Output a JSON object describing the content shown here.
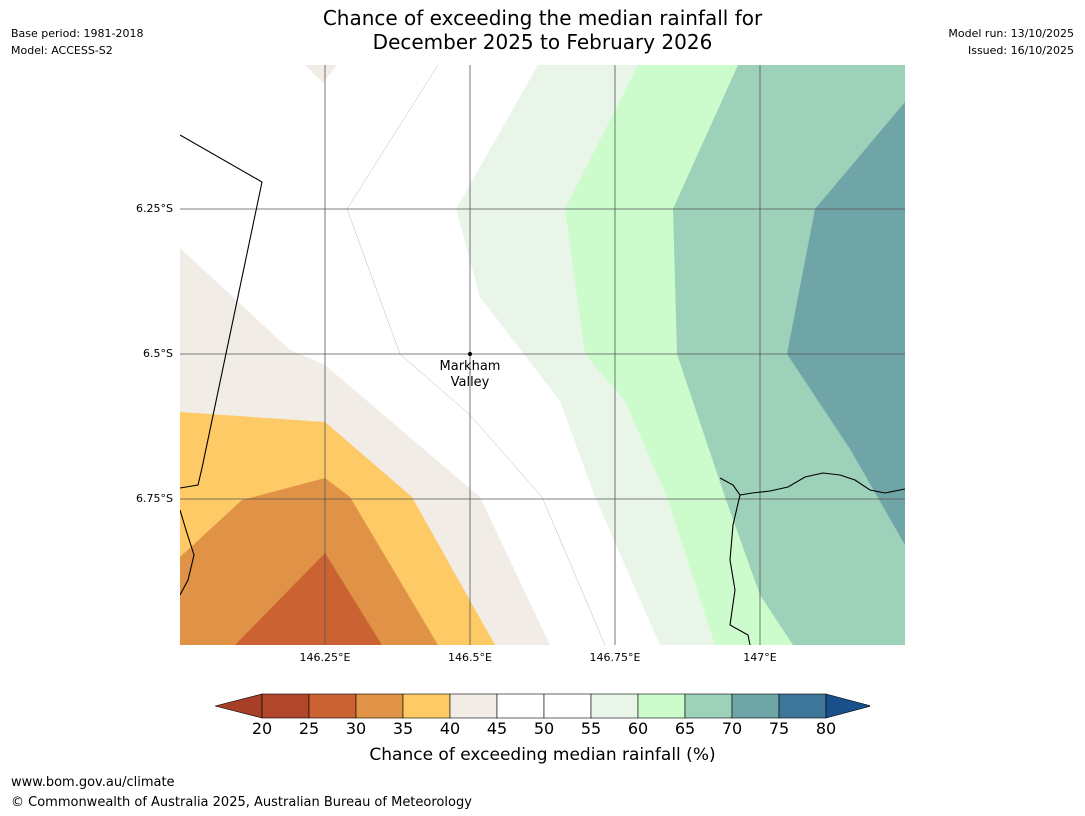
{
  "header": {
    "title_line1": "Chance of exceeding the median rainfall for",
    "title_line2": "December 2025 to February 2026",
    "base_period": "Base period: 1981-2018",
    "model": "Model: ACCESS-S2",
    "model_run": "Model run: 13/10/2025",
    "issued": "Issued: 16/10/2025"
  },
  "map": {
    "lat_labels": [
      "6.25°S",
      "6.5°S",
      "6.75°S"
    ],
    "lon_labels": [
      "146.25°E",
      "146.5°E",
      "146.75°E",
      "147°E"
    ],
    "place": {
      "name_line1": "Markham",
      "name_line2": "Valley"
    }
  },
  "colorbar": {
    "ticks": [
      "20",
      "25",
      "30",
      "35",
      "40",
      "45",
      "50",
      "55",
      "60",
      "65",
      "70",
      "75",
      "80"
    ],
    "colors": [
      "#a63f26",
      "#b0462a",
      "#cb6232",
      "#e09346",
      "#fdca66",
      "#f1ece6",
      "#ffffff",
      "#ffffff",
      "#e9f5e9",
      "#ccfccc",
      "#9dd1ba",
      "#70a5a8",
      "#3e7699",
      "#17508a"
    ],
    "title": "Chance of exceeding median rainfall (%)"
  },
  "footer": {
    "website": "www.bom.gov.au/climate",
    "copyright": "© Commonwealth of Australia 2025, Australian Bureau of Meteorology"
  }
}
